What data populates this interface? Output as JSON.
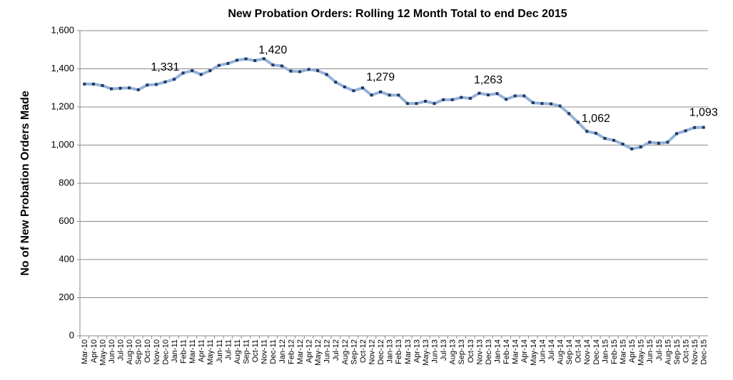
{
  "chart_data": {
    "type": "line",
    "title": "New Probation Orders: Rolling 12 Month Total to end  Dec 2015",
    "y_label": "No of New Probation Orders Made",
    "categories": [
      "Mar-10",
      "Apr-10",
      "May-10",
      "Jun-10",
      "Jul-10",
      "Aug-10",
      "Sep-10",
      "Oct-10",
      "Nov-10",
      "Dec-10",
      "Jan-11",
      "Feb-11",
      "Mar-11",
      "Apr-11",
      "May-11",
      "Jun-11",
      "Jul-11",
      "Aug-11",
      "Sep-11",
      "Oct-11",
      "Nov-11",
      "Dec-11",
      "Jan-12",
      "Feb-12",
      "Mar-12",
      "Apr-12",
      "May-12",
      "Jun-12",
      "Jul-12",
      "Aug-12",
      "Sep-12",
      "Oct-12",
      "Nov-12",
      "Dec-12",
      "Jan-13",
      "Feb-13",
      "Mar-13",
      "Apr-13",
      "May-13",
      "Jun-13",
      "Jul-13",
      "Aug-13",
      "Sep-13",
      "Oct-13",
      "Nov-13",
      "Dec-13",
      "Jan-14",
      "Feb-14",
      "Mar-14",
      "Apr-14",
      "May-14",
      "Jun-14",
      "Jul-14",
      "Aug-14",
      "Sep-14",
      "Oct-14",
      "Nov-14",
      "Dec-14",
      "Jan-15",
      "Feb-15",
      "Mar-15",
      "Apr-15",
      "May-15",
      "Jun-15",
      "Jul-15",
      "Aug-15",
      "Sep-15",
      "Oct-15",
      "Nov-15",
      "Dec-15"
    ],
    "series": [
      {
        "name": "New Probation Orders",
        "color": "#95b3d7",
        "marker_color": "#1f3864",
        "values": [
          1320,
          1320,
          1312,
          1295,
          1298,
          1300,
          1290,
          1315,
          1318,
          1331,
          1345,
          1378,
          1390,
          1370,
          1390,
          1418,
          1428,
          1445,
          1452,
          1443,
          1453,
          1420,
          1415,
          1388,
          1385,
          1397,
          1390,
          1370,
          1330,
          1305,
          1285,
          1300,
          1262,
          1279,
          1262,
          1262,
          1218,
          1218,
          1230,
          1218,
          1238,
          1238,
          1250,
          1245,
          1272,
          1263,
          1270,
          1240,
          1258,
          1258,
          1222,
          1218,
          1216,
          1205,
          1165,
          1120,
          1072,
          1062,
          1035,
          1025,
          1005,
          980,
          990,
          1015,
          1010,
          1015,
          1060,
          1075,
          1092,
          1093
        ],
        "value_labels": [
          null,
          null,
          null,
          null,
          null,
          null,
          null,
          null,
          null,
          "1,331",
          null,
          null,
          null,
          null,
          null,
          null,
          null,
          null,
          null,
          null,
          null,
          "1,420",
          null,
          null,
          null,
          null,
          null,
          null,
          null,
          null,
          null,
          null,
          null,
          "1,279",
          null,
          null,
          null,
          null,
          null,
          null,
          null,
          null,
          null,
          null,
          null,
          "1,263",
          null,
          null,
          null,
          null,
          null,
          null,
          null,
          null,
          null,
          null,
          null,
          "1,062",
          null,
          null,
          null,
          null,
          null,
          null,
          null,
          null,
          null,
          null,
          null,
          "1,093"
        ]
      }
    ],
    "ylim": [
      0,
      1600
    ],
    "yticks": [
      0,
      200,
      400,
      600,
      800,
      {
        "value": 1000,
        "label": "1,000"
      },
      {
        "value": 1200,
        "label": "1,200"
      },
      {
        "value": 1400,
        "label": "1,400"
      },
      {
        "value": 1600,
        "label": "1,600"
      }
    ],
    "grid": true
  }
}
